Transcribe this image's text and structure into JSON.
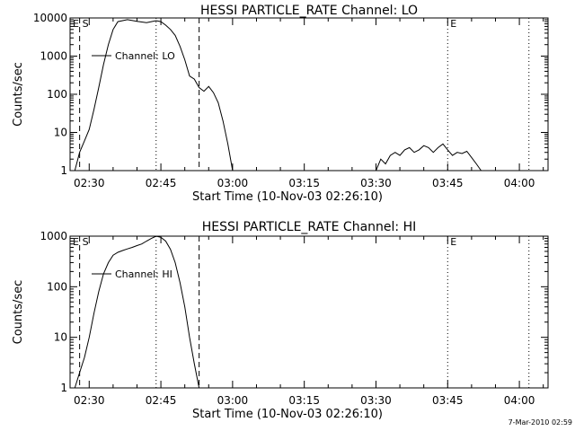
{
  "footer": {
    "stamp": "7-Mar-2010 02:59"
  },
  "chart_data": [
    {
      "type": "line",
      "title": "HESSI PARTICLE_RATE Channel: LO",
      "xlabel": "Start Time (10-Nov-03 02:26:10)",
      "ylabel": "Counts/sec",
      "yscale": "log",
      "ylim": [
        1,
        10000
      ],
      "ytick_labels": [
        "1",
        "10",
        "100",
        "1000",
        "10000"
      ],
      "ytick_values": [
        1,
        10,
        100,
        1000,
        10000
      ],
      "xlim": [
        "02:26",
        "04:06"
      ],
      "xtick_labels": [
        "02:30",
        "02:45",
        "03:00",
        "03:15",
        "03:30",
        "03:45",
        "04:00"
      ],
      "legend": {
        "position": "top-left",
        "label": "Channel: LO"
      },
      "markers": [
        {
          "x": "02:28",
          "style": "dashed",
          "label": "S"
        },
        {
          "x": "02:44",
          "style": "dotted",
          "label": ""
        },
        {
          "x": "02:53",
          "style": "dashed",
          "label": ""
        },
        {
          "x": "03:45",
          "style": "dotted",
          "label": "E"
        },
        {
          "x": "04:02",
          "style": "dotted",
          "label": ""
        }
      ],
      "corner_label": "E",
      "series": [
        {
          "name": "Channel: LO",
          "segments": [
            [
              [
                "02:27",
                1
              ],
              [
                "02:28",
                3
              ],
              [
                "02:29",
                6
              ],
              [
                "02:30",
                12
              ],
              [
                "02:31",
                40
              ],
              [
                "02:32",
                150
              ],
              [
                "02:33",
                600
              ],
              [
                "02:34",
                2000
              ],
              [
                "02:35",
                5000
              ],
              [
                "02:36",
                8000
              ],
              [
                "02:38",
                9000
              ],
              [
                "02:40",
                8200
              ],
              [
                "02:42",
                7500
              ],
              [
                "02:44",
                8500
              ],
              [
                "02:45",
                8000
              ],
              [
                "02:46",
                6500
              ],
              [
                "02:47",
                5000
              ],
              [
                "02:48",
                3500
              ],
              [
                "02:49",
                1800
              ],
              [
                "02:50",
                800
              ],
              [
                "02:51",
                300
              ],
              [
                "02:52",
                250
              ],
              [
                "02:53",
                150
              ],
              [
                "02:54",
                120
              ],
              [
                "02:55",
                160
              ],
              [
                "02:56",
                110
              ],
              [
                "02:57",
                60
              ],
              [
                "02:58",
                20
              ],
              [
                "02:59",
                5
              ],
              [
                "03:00",
                1
              ]
            ],
            [
              [
                "03:30",
                1
              ],
              [
                "03:31",
                2
              ],
              [
                "03:32",
                1.5
              ],
              [
                "03:33",
                2.5
              ],
              [
                "03:34",
                3
              ],
              [
                "03:35",
                2.5
              ],
              [
                "03:36",
                3.5
              ],
              [
                "03:37",
                4
              ],
              [
                "03:38",
                3
              ],
              [
                "03:39",
                3.5
              ],
              [
                "03:40",
                4.5
              ],
              [
                "03:41",
                4
              ],
              [
                "03:42",
                3
              ],
              [
                "03:43",
                4
              ],
              [
                "03:44",
                5
              ],
              [
                "03:45",
                3.5
              ],
              [
                "03:46",
                2.5
              ],
              [
                "03:47",
                3
              ],
              [
                "03:48",
                2.8
              ],
              [
                "03:49",
                3.2
              ],
              [
                "03:50",
                2.2
              ],
              [
                "03:51",
                1.5
              ],
              [
                "03:52",
                1
              ]
            ]
          ]
        }
      ]
    },
    {
      "type": "line",
      "title": "HESSI PARTICLE_RATE Channel: HI",
      "xlabel": "Start Time (10-Nov-03 02:26:10)",
      "ylabel": "Counts/sec",
      "yscale": "log",
      "ylim": [
        1,
        1000
      ],
      "ytick_labels": [
        "1",
        "10",
        "100",
        "1000"
      ],
      "ytick_values": [
        1,
        10,
        100,
        1000
      ],
      "xlim": [
        "02:26",
        "04:06"
      ],
      "xtick_labels": [
        "02:30",
        "02:45",
        "03:00",
        "03:15",
        "03:30",
        "03:45",
        "04:00"
      ],
      "legend": {
        "position": "top-left",
        "label": "Channel: HI"
      },
      "markers": [
        {
          "x": "02:28",
          "style": "dashed",
          "label": "S"
        },
        {
          "x": "02:44",
          "style": "dotted",
          "label": ""
        },
        {
          "x": "02:53",
          "style": "dashed",
          "label": ""
        },
        {
          "x": "03:45",
          "style": "dotted",
          "label": "E"
        },
        {
          "x": "04:02",
          "style": "dotted",
          "label": ""
        }
      ],
      "corner_label": "E",
      "series": [
        {
          "name": "Channel: HI",
          "segments": [
            [
              [
                "02:27",
                1
              ],
              [
                "02:28",
                2
              ],
              [
                "02:29",
                4
              ],
              [
                "02:30",
                10
              ],
              [
                "02:31",
                30
              ],
              [
                "02:32",
                80
              ],
              [
                "02:33",
                180
              ],
              [
                "02:34",
                300
              ],
              [
                "02:35",
                420
              ],
              [
                "02:36",
                480
              ],
              [
                "02:37",
                520
              ],
              [
                "02:38",
                560
              ],
              [
                "02:39",
                600
              ],
              [
                "02:40",
                650
              ],
              [
                "02:41",
                700
              ],
              [
                "02:42",
                800
              ],
              [
                "02:43",
                900
              ],
              [
                "02:44",
                1000
              ],
              [
                "02:45",
                950
              ],
              [
                "02:46",
                800
              ],
              [
                "02:47",
                550
              ],
              [
                "02:48",
                300
              ],
              [
                "02:49",
                120
              ],
              [
                "02:50",
                40
              ],
              [
                "02:51",
                10
              ],
              [
                "02:52",
                3
              ],
              [
                "02:53",
                1
              ]
            ]
          ]
        }
      ]
    }
  ]
}
